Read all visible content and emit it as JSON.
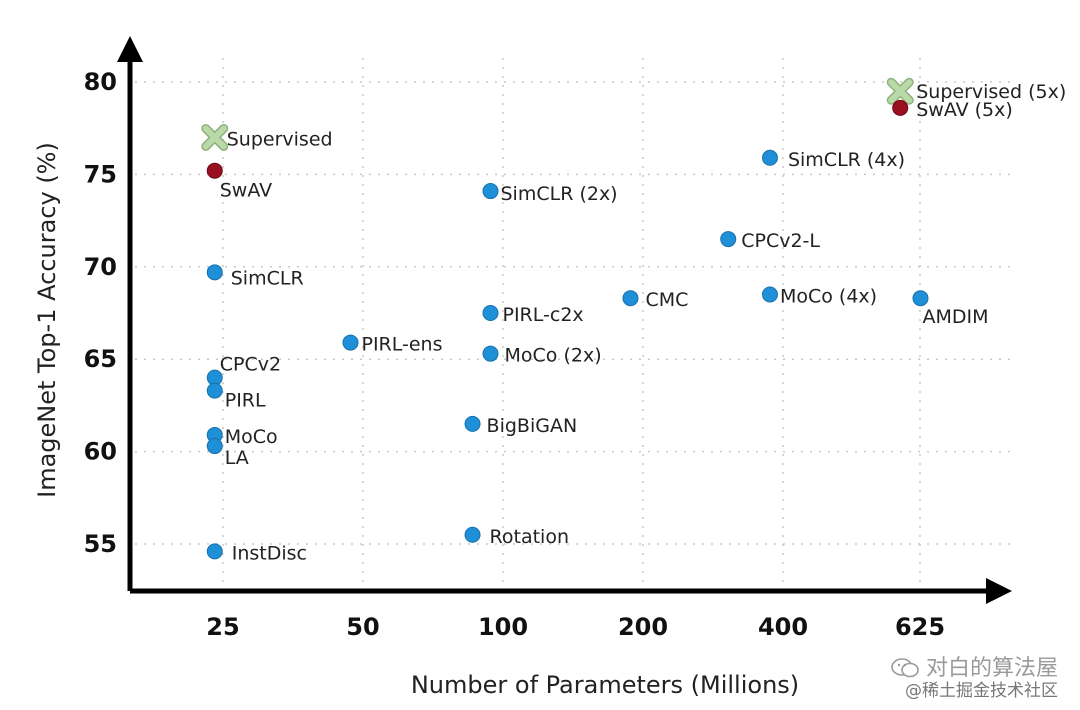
{
  "chart_data": {
    "type": "scatter",
    "title": "",
    "xlabel": "Number of Parameters (Millions)",
    "ylabel": "ImageNet Top-1 Accuracy (%)",
    "x_ticks": [
      "25",
      "50",
      "100",
      "200",
      "400",
      "625"
    ],
    "y_ticks": [
      55,
      60,
      65,
      70,
      75,
      80
    ],
    "ylim": [
      53,
      82
    ],
    "grid": true,
    "colors": {
      "self_supervised": "#1f90d8",
      "swav": "#9b1020",
      "supervised": "#b9d9a8"
    },
    "points": [
      {
        "label": "Supervised (5x)",
        "x": 586,
        "y": 79.5,
        "group": "supervised"
      },
      {
        "label": "SwAV (5x)",
        "x": 586,
        "y": 78.6,
        "group": "swav"
      },
      {
        "label": "Supervised",
        "x": 24,
        "y": 77.0,
        "group": "supervised"
      },
      {
        "label": "SwAV",
        "x": 24,
        "y": 75.2,
        "group": "swav"
      },
      {
        "label": "SimCLR (4x)",
        "x": 375,
        "y": 75.9,
        "group": "self_supervised"
      },
      {
        "label": "SimCLR (2x)",
        "x": 94,
        "y": 74.1,
        "group": "self_supervised"
      },
      {
        "label": "CPCv2-L",
        "x": 305,
        "y": 71.5,
        "group": "self_supervised"
      },
      {
        "label": "SimCLR",
        "x": 24,
        "y": 69.7,
        "group": "self_supervised"
      },
      {
        "label": "CMC",
        "x": 188,
        "y": 68.3,
        "group": "self_supervised"
      },
      {
        "label": "MoCo (4x)",
        "x": 375,
        "y": 68.5,
        "group": "self_supervised"
      },
      {
        "label": "AMDIM",
        "x": 626,
        "y": 68.3,
        "group": "self_supervised"
      },
      {
        "label": "PIRL-c2x",
        "x": 94,
        "y": 67.5,
        "group": "self_supervised"
      },
      {
        "label": "PIRL-ens",
        "x": 47,
        "y": 65.9,
        "group": "self_supervised"
      },
      {
        "label": "MoCo (2x)",
        "x": 94,
        "y": 65.3,
        "group": "self_supervised"
      },
      {
        "label": "CPCv2",
        "x": 24,
        "y": 64.0,
        "group": "self_supervised"
      },
      {
        "label": "PIRL",
        "x": 24,
        "y": 63.3,
        "group": "self_supervised"
      },
      {
        "label": "BigBiGAN",
        "x": 86,
        "y": 61.5,
        "group": "self_supervised"
      },
      {
        "label": "MoCo",
        "x": 24,
        "y": 60.9,
        "group": "self_supervised"
      },
      {
        "label": "LA",
        "x": 24,
        "y": 60.3,
        "group": "self_supervised"
      },
      {
        "label": "Rotation",
        "x": 86,
        "y": 55.5,
        "group": "self_supervised"
      },
      {
        "label": "InstDisc",
        "x": 24,
        "y": 54.6,
        "group": "self_supervised"
      }
    ]
  },
  "watermark": {
    "line1": "对白的算法屋",
    "line2": "@稀土掘金技术社区"
  }
}
